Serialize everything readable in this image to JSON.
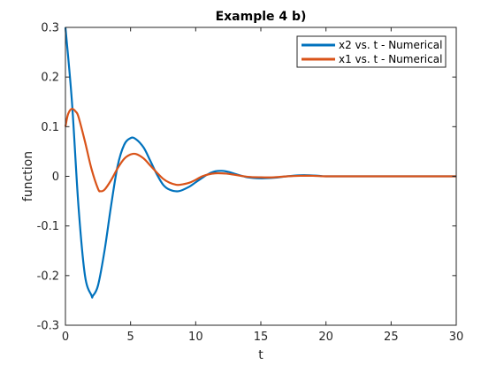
{
  "chart_data": {
    "type": "line",
    "title": "Example 4 b)",
    "xlabel": "t",
    "ylabel": "function",
    "xlim": [
      0,
      30
    ],
    "ylim": [
      -0.3,
      0.3
    ],
    "xticks": [
      "0",
      "5",
      "10",
      "15",
      "20",
      "25",
      "30"
    ],
    "yticks": [
      "0.3",
      "0.2",
      "0.1",
      "0",
      "-0.1",
      "-0.2",
      "-0.3"
    ],
    "grid": false,
    "legend_position": "top-right",
    "series": [
      {
        "name": "x2 vs. t - Numerical",
        "color": "#0072BD",
        "x": [
          0,
          0.5,
          1.0,
          1.5,
          2.0,
          2.1,
          2.5,
          3.0,
          3.5,
          4.0,
          4.5,
          5.0,
          5.4,
          6.0,
          6.5,
          7.0,
          7.5,
          8.0,
          8.7,
          9.5,
          10.0,
          10.5,
          11.0,
          11.5,
          12.0,
          12.5,
          13.0,
          14.0,
          15.0,
          16.0,
          17.0,
          18.0,
          18.7,
          19.5,
          20.0,
          22.0,
          25.0,
          30.0
        ],
        "y": [
          0.3,
          0.15,
          -0.06,
          -0.2,
          -0.24,
          -0.241,
          -0.22,
          -0.15,
          -0.06,
          0.02,
          0.063,
          0.077,
          0.075,
          0.058,
          0.032,
          0.005,
          -0.017,
          -0.027,
          -0.03,
          -0.021,
          -0.012,
          -0.003,
          0.005,
          0.01,
          0.011,
          0.009,
          0.005,
          -0.002,
          -0.004,
          -0.003,
          0.0,
          0.002,
          0.002,
          0.001,
          0.0,
          0.0,
          0.0,
          0.0
        ]
      },
      {
        "name": "x1 vs. t - Numerical",
        "color": "#D95319",
        "x": [
          0,
          0.2,
          0.5,
          0.8,
          1.0,
          1.5,
          2.0,
          2.5,
          2.7,
          3.0,
          3.5,
          4.0,
          4.5,
          5.0,
          5.4,
          6.0,
          6.5,
          7.0,
          7.5,
          8.0,
          8.5,
          8.8,
          9.5,
          10.0,
          10.5,
          11.0,
          11.5,
          12.0,
          12.5,
          13.0,
          14.0,
          15.0,
          16.0,
          17.0,
          18.0,
          19.0,
          20.0,
          22.0,
          25.0,
          30.0
        ],
        "y": [
          0.1,
          0.125,
          0.136,
          0.13,
          0.12,
          0.07,
          0.015,
          -0.025,
          -0.03,
          -0.027,
          -0.008,
          0.016,
          0.035,
          0.044,
          0.045,
          0.036,
          0.022,
          0.008,
          -0.005,
          -0.013,
          -0.017,
          -0.017,
          -0.013,
          -0.007,
          0.0,
          0.004,
          0.006,
          0.006,
          0.005,
          0.003,
          -0.001,
          -0.002,
          -0.002,
          0.0,
          0.001,
          0.001,
          0.0,
          0.0,
          0.0,
          0.0
        ]
      }
    ]
  }
}
